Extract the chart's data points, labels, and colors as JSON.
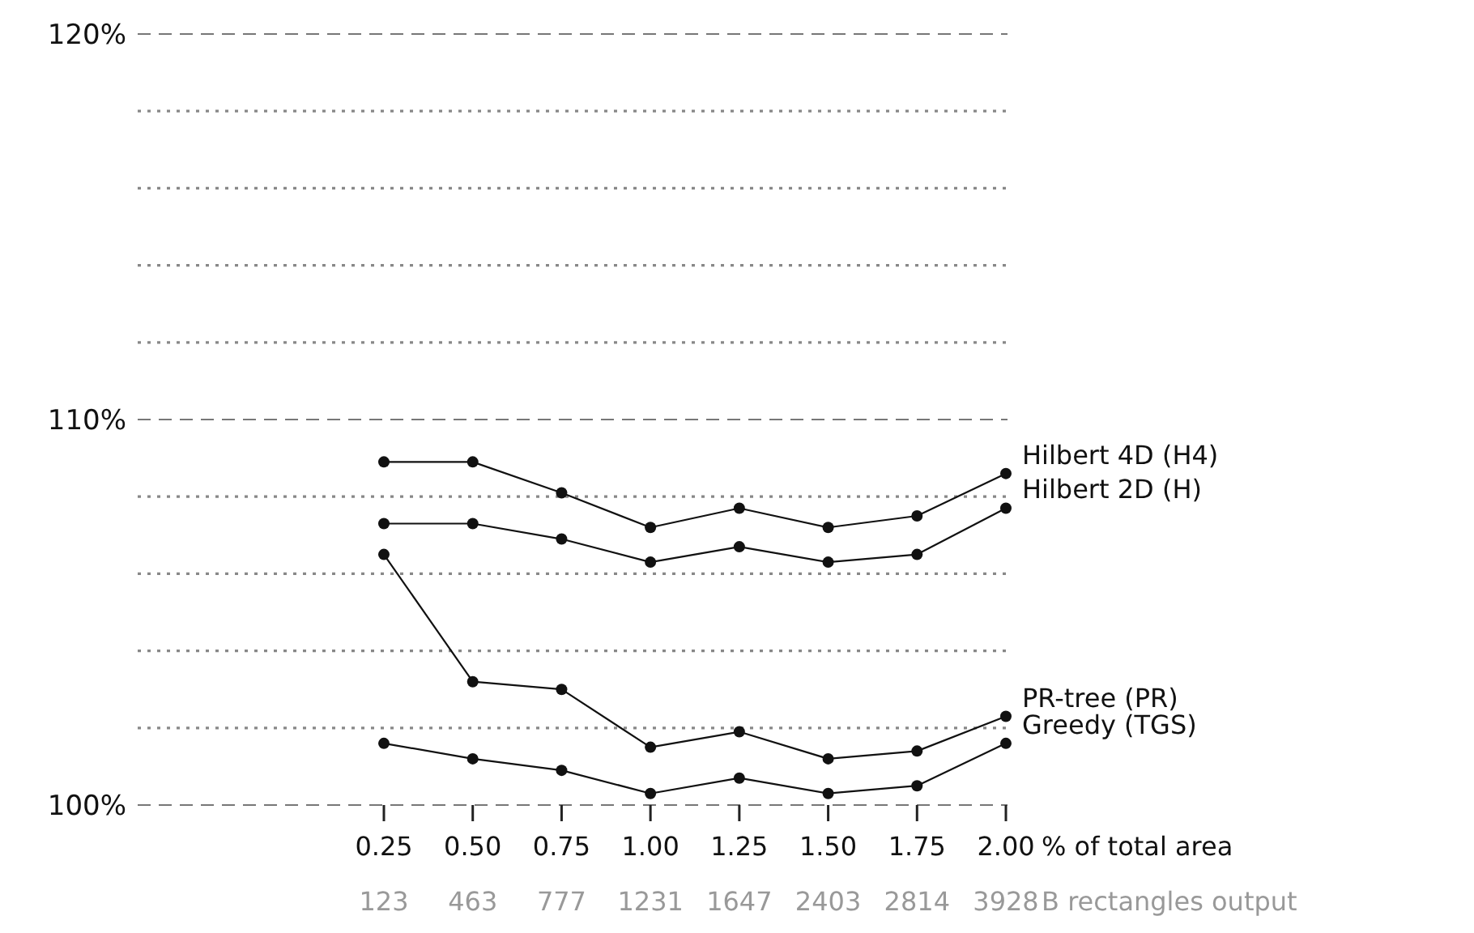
{
  "chart_data": {
    "type": "line",
    "categories": [
      "0.25\n123",
      "0.50\n463",
      "0.75\n777",
      "1.00\n1231",
      "1.25\n1647",
      "1.50\n2403",
      "1.75\n2814",
      "2.00\n3928"
    ],
    "xlabel": "% of total area\nB rectangles output",
    "series": [
      {
        "name": "Hilbert 4D (H4)",
        "color": "#111111",
        "values": [
          108.9,
          108.9,
          108.1,
          107.2,
          107.7,
          107.2,
          107.5,
          108.6
        ]
      },
      {
        "name": "Hilbert 2D (H)",
        "color": "#111111",
        "values": [
          107.3,
          107.3,
          106.9,
          106.3,
          106.7,
          106.3,
          106.5,
          107.7
        ]
      },
      {
        "name": "PR-tree (PR)",
        "color": "#111111",
        "values": [
          106.5,
          103.2,
          103.0,
          101.5,
          101.9,
          101.2,
          101.4,
          102.3
        ]
      },
      {
        "name": "Greedy (TGS)",
        "color": "#111111",
        "values": [
          101.6,
          101.2,
          100.9,
          100.3,
          100.7,
          100.3,
          100.5,
          101.6
        ]
      }
    ],
    "ylim": [
      100,
      120
    ],
    "yticks": [
      {
        "value": 100,
        "label": "100%"
      },
      {
        "value": 102,
        "label": null
      },
      {
        "value": 104,
        "label": null
      },
      {
        "value": 106,
        "label": null
      },
      {
        "value": 108,
        "label": null
      },
      {
        "value": 110,
        "label": "110%"
      },
      {
        "value": 112,
        "label": null
      },
      {
        "value": 114,
        "label": null
      },
      {
        "value": 116,
        "label": null
      },
      {
        "value": 118,
        "label": null
      },
      {
        "value": 120,
        "label": "120%"
      }
    ],
    "ref_lines": [
      {
        "axis": "y",
        "value": 110,
        "line_style": "dashed",
        "color": "#777777"
      }
    ],
    "grid": "y",
    "legend": false,
    "marker": "circle",
    "line_style": "solid"
  }
}
